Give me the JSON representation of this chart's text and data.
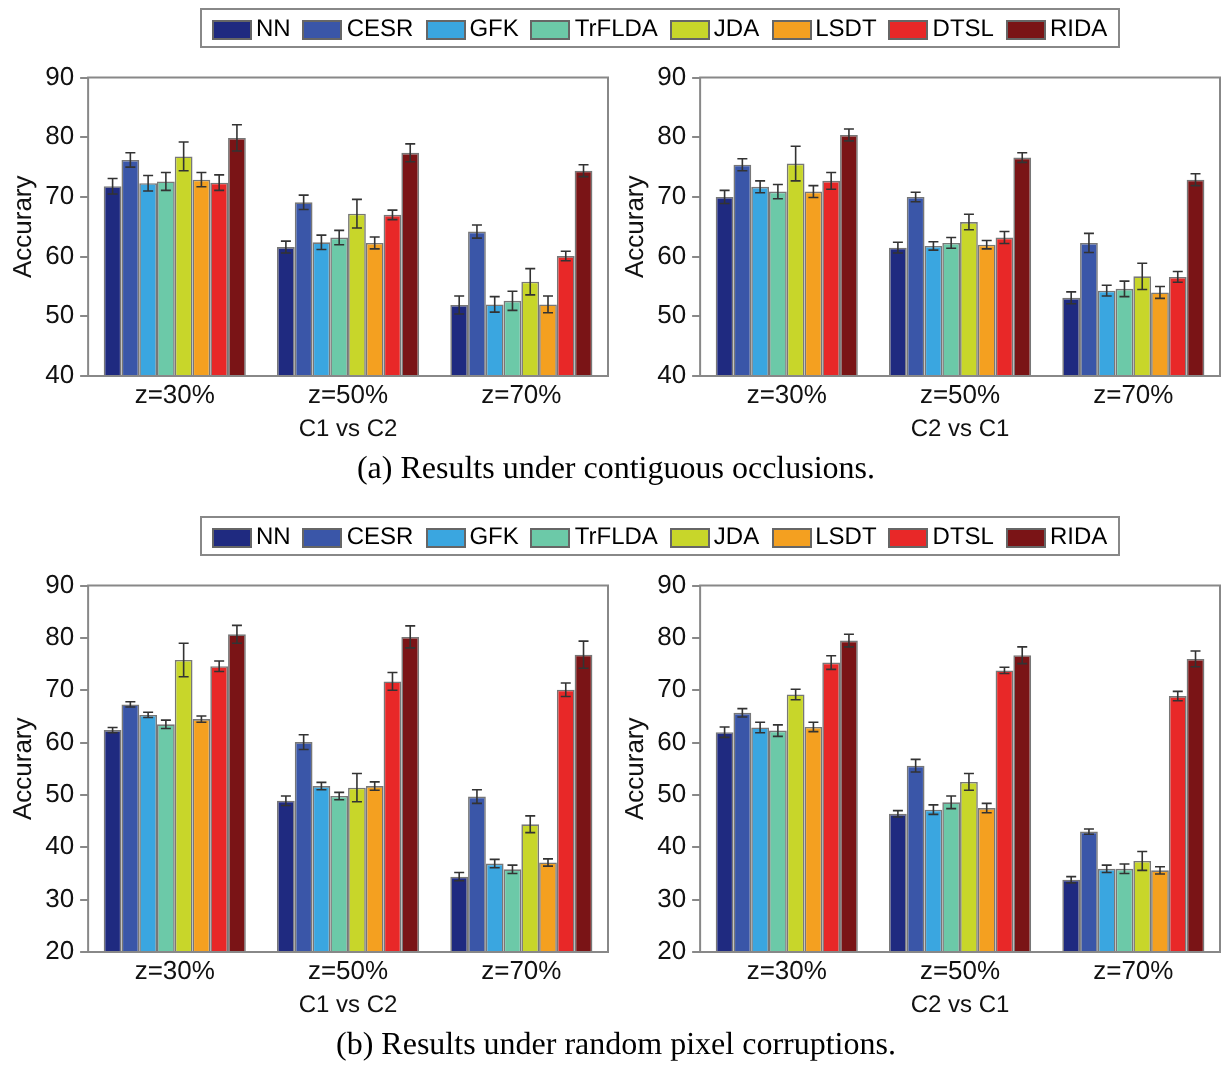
{
  "chart_data": [
    {
      "type": "bar",
      "categories": [
        "z=30%",
        "z=50%",
        "z=70%"
      ],
      "xlabel": "C1 vs C2",
      "ylabel": "Accurary",
      "ylim": [
        40,
        90
      ],
      "yticks": [
        40,
        50,
        60,
        70,
        80,
        90
      ],
      "grid": false,
      "legend": "top",
      "annotations": [
        "(a) Results under contiguous occlusions."
      ],
      "series": [
        {
          "name": "NN",
          "color": "#1f2a80",
          "values": [
            71.8,
            61.6,
            51.9
          ],
          "errors": [
            1.3,
            1.0,
            1.5
          ]
        },
        {
          "name": "CESR",
          "color": "#3a56a8",
          "values": [
            76.2,
            69.1,
            64.2
          ],
          "errors": [
            1.2,
            1.2,
            1.1
          ]
        },
        {
          "name": "GFK",
          "color": "#3aa6e0",
          "values": [
            72.3,
            62.4,
            52.0
          ],
          "errors": [
            1.3,
            1.2,
            1.3
          ]
        },
        {
          "name": "TrFLDA",
          "color": "#6cc9a8",
          "values": [
            72.6,
            63.2,
            52.6
          ],
          "errors": [
            1.5,
            1.2,
            1.6
          ]
        },
        {
          "name": "JDA",
          "color": "#c8d62a",
          "values": [
            76.8,
            67.2,
            55.8
          ],
          "errors": [
            2.4,
            2.4,
            2.2
          ]
        },
        {
          "name": "LSDT",
          "color": "#f4a020",
          "values": [
            72.9,
            62.3,
            52.0
          ],
          "errors": [
            1.2,
            1.0,
            1.4
          ]
        },
        {
          "name": "DTSL",
          "color": "#e82828",
          "values": [
            72.4,
            67.0,
            60.1
          ],
          "errors": [
            1.3,
            0.8,
            0.8
          ]
        },
        {
          "name": "RIDA",
          "color": "#7a1416",
          "values": [
            79.9,
            77.4,
            74.4
          ],
          "errors": [
            2.2,
            1.5,
            1.0
          ]
        }
      ]
    },
    {
      "type": "bar",
      "categories": [
        "z=30%",
        "z=50%",
        "z=70%"
      ],
      "xlabel": "C2 vs C1",
      "ylabel": "Accurary",
      "ylim": [
        40,
        90
      ],
      "yticks": [
        40,
        50,
        60,
        70,
        80,
        90
      ],
      "grid": false,
      "series": [
        {
          "color": "#1f2a80",
          "values": [
            70.0,
            61.5,
            53.1
          ],
          "errors": [
            1.1,
            0.9,
            1.0
          ]
        },
        {
          "color": "#3a56a8",
          "values": [
            75.4,
            70.0,
            62.3
          ],
          "errors": [
            1.0,
            0.8,
            1.6
          ]
        },
        {
          "color": "#3aa6e0",
          "values": [
            71.7,
            61.8,
            54.3
          ],
          "errors": [
            1.0,
            0.7,
            0.9
          ]
        },
        {
          "color": "#6cc9a8",
          "values": [
            70.9,
            62.3,
            54.6
          ],
          "errors": [
            1.2,
            0.9,
            1.3
          ]
        },
        {
          "color": "#c8d62a",
          "values": [
            75.6,
            65.8,
            56.7
          ],
          "errors": [
            2.9,
            1.3,
            2.2
          ]
        },
        {
          "color": "#f4a020",
          "values": [
            70.9,
            62.0,
            54.0
          ],
          "errors": [
            1.0,
            0.7,
            1.0
          ]
        },
        {
          "color": "#e82828",
          "values": [
            72.7,
            63.2,
            56.6
          ],
          "errors": [
            1.4,
            1.0,
            0.9
          ]
        },
        {
          "color": "#7a1416",
          "values": [
            80.4,
            76.6,
            72.9
          ],
          "errors": [
            1.0,
            0.8,
            1.0
          ]
        }
      ]
    },
    {
      "type": "bar",
      "categories": [
        "z=30%",
        "z=50%",
        "z=70%"
      ],
      "xlabel": "C1 vs C2",
      "ylabel": "Accurary",
      "ylim": [
        20,
        90
      ],
      "yticks": [
        20,
        30,
        40,
        50,
        60,
        70,
        80,
        90
      ],
      "grid": false,
      "legend": "top",
      "annotations": [
        "(b) Results under random pixel corruptions."
      ],
      "series": [
        {
          "name": "NN",
          "color": "#1f2a80",
          "values": [
            62.4,
            48.9,
            34.4
          ],
          "errors": [
            0.5,
            0.9,
            0.8
          ]
        },
        {
          "name": "CESR",
          "color": "#3a56a8",
          "values": [
            67.3,
            60.1,
            49.7
          ],
          "errors": [
            0.5,
            1.4,
            1.3
          ]
        },
        {
          "name": "GFK",
          "color": "#3aa6e0",
          "values": [
            65.3,
            51.7,
            36.9
          ],
          "errors": [
            0.5,
            0.7,
            0.8
          ]
        },
        {
          "name": "TrFLDA",
          "color": "#6cc9a8",
          "values": [
            63.5,
            49.8,
            35.8
          ],
          "errors": [
            0.8,
            0.7,
            0.8
          ]
        },
        {
          "name": "JDA",
          "color": "#c8d62a",
          "values": [
            75.8,
            51.4,
            44.4
          ],
          "errors": [
            3.2,
            2.7,
            1.6
          ]
        },
        {
          "name": "LSDT",
          "color": "#f4a020",
          "values": [
            64.5,
            51.7,
            37.1
          ],
          "errors": [
            0.6,
            0.8,
            0.7
          ]
        },
        {
          "name": "DTSL",
          "color": "#e82828",
          "values": [
            74.6,
            71.7,
            70.1
          ],
          "errors": [
            1.0,
            1.7,
            1.3
          ]
        },
        {
          "name": "RIDA",
          "color": "#7a1416",
          "values": [
            80.7,
            80.2,
            76.8
          ],
          "errors": [
            1.7,
            2.1,
            2.6
          ]
        }
      ]
    },
    {
      "type": "bar",
      "categories": [
        "z=30%",
        "z=50%",
        "z=70%"
      ],
      "xlabel": "C2 vs C1",
      "ylabel": "Accurary",
      "ylim": [
        20,
        90
      ],
      "yticks": [
        20,
        30,
        40,
        50,
        60,
        70,
        80,
        90
      ],
      "grid": false,
      "series": [
        {
          "color": "#1f2a80",
          "values": [
            62.0,
            46.4,
            33.8
          ],
          "errors": [
            1.0,
            0.6,
            0.6
          ]
        },
        {
          "color": "#3a56a8",
          "values": [
            65.7,
            55.6,
            43.0
          ],
          "errors": [
            0.8,
            1.2,
            0.5
          ]
        },
        {
          "color": "#3aa6e0",
          "values": [
            62.9,
            47.2,
            35.9
          ],
          "errors": [
            1.0,
            0.9,
            0.7
          ]
        },
        {
          "color": "#6cc9a8",
          "values": [
            62.3,
            48.6,
            35.9
          ],
          "errors": [
            1.1,
            1.2,
            0.9
          ]
        },
        {
          "color": "#c8d62a",
          "values": [
            69.2,
            52.5,
            37.4
          ],
          "errors": [
            1.0,
            1.6,
            1.8
          ]
        },
        {
          "color": "#f4a020",
          "values": [
            63.0,
            47.5,
            35.6
          ],
          "errors": [
            0.9,
            0.9,
            0.7
          ]
        },
        {
          "color": "#e82828",
          "values": [
            75.3,
            73.8,
            68.9
          ],
          "errors": [
            1.3,
            0.6,
            0.9
          ]
        },
        {
          "color": "#7a1416",
          "values": [
            79.5,
            76.7,
            76.0
          ],
          "errors": [
            1.2,
            1.6,
            1.5
          ]
        }
      ]
    }
  ]
}
